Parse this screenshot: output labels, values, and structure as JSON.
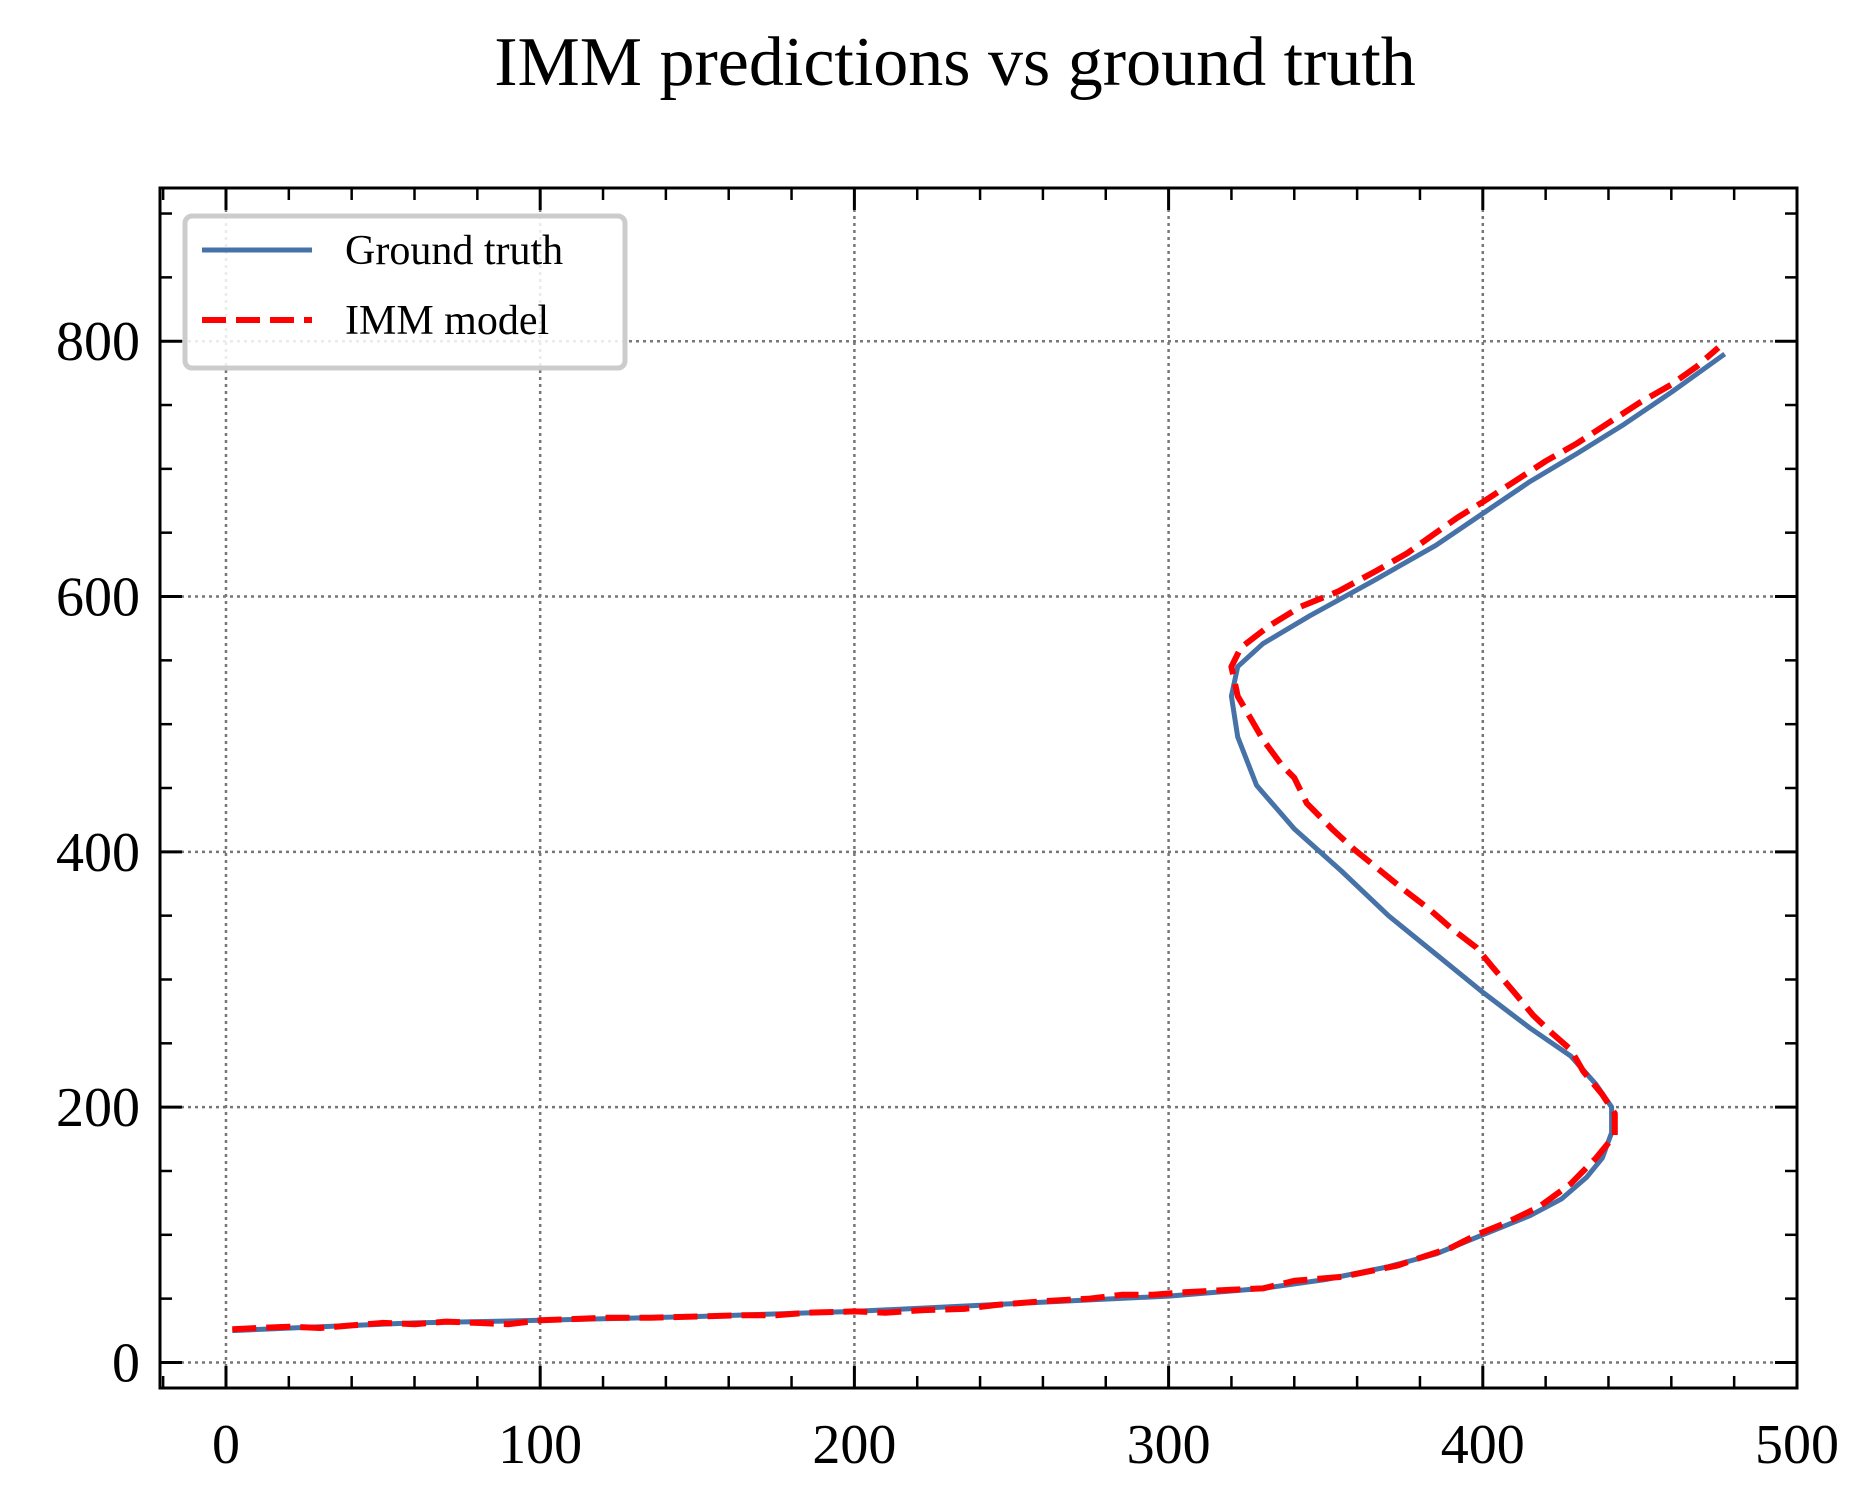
{
  "chart_data": {
    "type": "line",
    "title": "IMM predictions vs ground truth",
    "xlabel": "",
    "ylabel": "",
    "xlim": [
      -21,
      500
    ],
    "ylim": [
      -20,
      920
    ],
    "xticks": [
      0,
      100,
      200,
      300,
      400,
      500
    ],
    "yticks": [
      0,
      200,
      400,
      600,
      800
    ],
    "x_minor_step": 20,
    "y_minor_step": 50,
    "grid": true,
    "legend_position": "top-left",
    "series": [
      {
        "name": "Ground truth",
        "color": "#4672a8",
        "style": "solid",
        "points": [
          [
            2,
            25
          ],
          [
            30,
            28
          ],
          [
            60,
            31
          ],
          [
            100,
            33
          ],
          [
            150,
            36
          ],
          [
            200,
            40
          ],
          [
            250,
            46
          ],
          [
            300,
            52
          ],
          [
            330,
            58
          ],
          [
            350,
            65
          ],
          [
            370,
            75
          ],
          [
            385,
            85
          ],
          [
            400,
            100
          ],
          [
            415,
            115
          ],
          [
            425,
            128
          ],
          [
            433,
            145
          ],
          [
            438,
            160
          ],
          [
            441,
            180
          ],
          [
            441,
            200
          ],
          [
            436,
            218
          ],
          [
            428,
            240
          ],
          [
            415,
            262
          ],
          [
            400,
            290
          ],
          [
            385,
            320
          ],
          [
            370,
            350
          ],
          [
            355,
            385
          ],
          [
            340,
            418
          ],
          [
            328,
            452
          ],
          [
            322,
            490
          ],
          [
            320,
            522
          ],
          [
            322,
            545
          ],
          [
            330,
            563
          ],
          [
            345,
            585
          ],
          [
            365,
            612
          ],
          [
            385,
            640
          ],
          [
            400,
            665
          ],
          [
            415,
            690
          ],
          [
            430,
            712
          ],
          [
            445,
            735
          ],
          [
            460,
            760
          ],
          [
            477,
            790
          ]
        ]
      },
      {
        "name": "IMM model",
        "color": "#ff0000",
        "style": "dashed",
        "points": [
          [
            2,
            26
          ],
          [
            10,
            27
          ],
          [
            20,
            28
          ],
          [
            30,
            27
          ],
          [
            40,
            29
          ],
          [
            50,
            31
          ],
          [
            60,
            30
          ],
          [
            70,
            32
          ],
          [
            80,
            31
          ],
          [
            90,
            30
          ],
          [
            100,
            33
          ],
          [
            110,
            34
          ],
          [
            120,
            35
          ],
          [
            135,
            35
          ],
          [
            150,
            36
          ],
          [
            165,
            37
          ],
          [
            175,
            37
          ],
          [
            185,
            39
          ],
          [
            200,
            40
          ],
          [
            210,
            39
          ],
          [
            222,
            41
          ],
          [
            235,
            42
          ],
          [
            245,
            45
          ],
          [
            260,
            48
          ],
          [
            275,
            50
          ],
          [
            285,
            53
          ],
          [
            295,
            53
          ],
          [
            305,
            55
          ],
          [
            320,
            57
          ],
          [
            330,
            58
          ],
          [
            340,
            64
          ],
          [
            355,
            67
          ],
          [
            365,
            72
          ],
          [
            373,
            76
          ],
          [
            380,
            82
          ],
          [
            390,
            90
          ],
          [
            398,
            100
          ],
          [
            408,
            110
          ],
          [
            418,
            122
          ],
          [
            428,
            140
          ],
          [
            436,
            160
          ],
          [
            442,
            178
          ],
          [
            442,
            195
          ],
          [
            438,
            210
          ],
          [
            432,
            228
          ],
          [
            428,
            245
          ],
          [
            422,
            258
          ],
          [
            416,
            272
          ],
          [
            410,
            290
          ],
          [
            403,
            310
          ],
          [
            398,
            325
          ],
          [
            390,
            340
          ],
          [
            383,
            355
          ],
          [
            374,
            372
          ],
          [
            366,
            388
          ],
          [
            359,
            402
          ],
          [
            352,
            418
          ],
          [
            344,
            438
          ],
          [
            340,
            458
          ],
          [
            336,
            468
          ],
          [
            330,
            488
          ],
          [
            326,
            505
          ],
          [
            322,
            522
          ],
          [
            320,
            545
          ],
          [
            323,
            560
          ],
          [
            332,
            577
          ],
          [
            342,
            592
          ],
          [
            354,
            604
          ],
          [
            366,
            620
          ],
          [
            376,
            634
          ],
          [
            384,
            648
          ],
          [
            392,
            662
          ],
          [
            400,
            674
          ],
          [
            410,
            690
          ],
          [
            420,
            706
          ],
          [
            430,
            720
          ],
          [
            440,
            736
          ],
          [
            450,
            752
          ],
          [
            460,
            766
          ],
          [
            468,
            780
          ],
          [
            475,
            795
          ]
        ]
      }
    ]
  }
}
